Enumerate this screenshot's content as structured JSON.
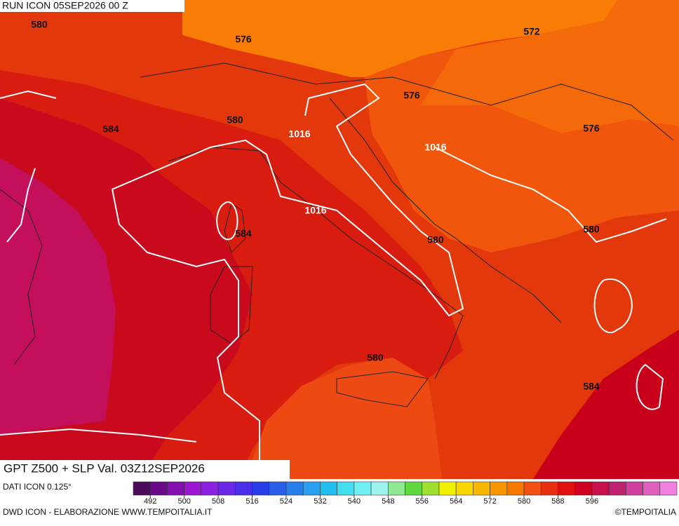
{
  "header": {
    "run": "RUN ICON 05SEP2026 00 Z"
  },
  "map": {
    "title": "GPT Z500 + SLP Val. 03Z12SEP2026",
    "contour_labels": [
      "580",
      "576",
      "572",
      "576",
      "576",
      "584",
      "580",
      "1016",
      "1016",
      "1016",
      "584",
      "580",
      "580",
      "580",
      "584"
    ]
  },
  "footer": {
    "source": "DATI ICON 0.125°",
    "credit": "DWD ICON - ELABORAZIONE WWW.TEMPOITALIA.IT",
    "copyright": "©TEMPOITALIA"
  },
  "colorbar": {
    "colors": [
      "#4b0a5a",
      "#6a0a8a",
      "#8410b0",
      "#9a16d0",
      "#8a20e0",
      "#6a28e6",
      "#4a2ee8",
      "#2a3ee8",
      "#2a5ee8",
      "#2a7ee8",
      "#2a9ef0",
      "#20beee",
      "#40deee",
      "#70f0f0",
      "#a0f4f0",
      "#90e890",
      "#60d840",
      "#a0e030",
      "#f0f000",
      "#f8d800",
      "#f8b800",
      "#f89800",
      "#f87800",
      "#f05010",
      "#e83010",
      "#e01010",
      "#d00020",
      "#c8104a",
      "#c02070",
      "#d040a0",
      "#e060c0",
      "#f080e0"
    ],
    "ticks": [
      492,
      500,
      508,
      516,
      524,
      532,
      540,
      548,
      556,
      564,
      572,
      580,
      588,
      596
    ]
  }
}
